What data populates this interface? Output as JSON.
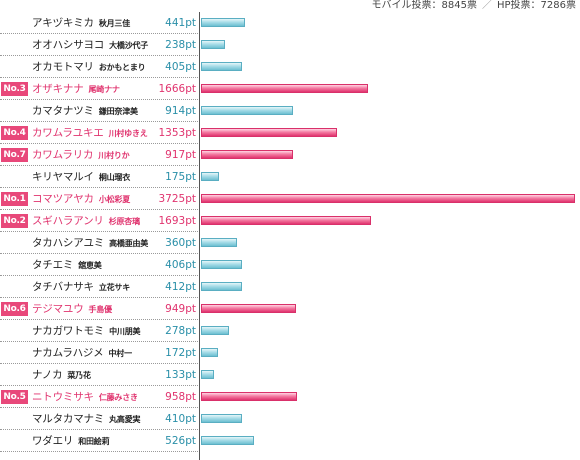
{
  "header": {
    "mobile": "モバイル投票：8845票",
    "separator": "／",
    "hp": "HP投票：7286票"
  },
  "colors": {
    "normal_bar": "#8ccfdd",
    "ranked_bar": "#e8487a",
    "normal_value": "#2a8fa8",
    "ranked_value": "#e0336e"
  },
  "chart_data": {
    "type": "bar",
    "orientation": "horizontal",
    "unit": "pt",
    "xlim": [
      0,
      3725
    ],
    "grid": false,
    "rows": [
      {
        "kana": "アキヅキミカ",
        "kanji": "秋月三佳",
        "value": 441,
        "label": "441pt",
        "rank": ""
      },
      {
        "kana": "オオハシサヨコ",
        "kanji": "大橋沙代子",
        "value": 238,
        "label": "238pt",
        "rank": ""
      },
      {
        "kana": "オカモトマリ",
        "kanji": "おかもとまり",
        "value": 405,
        "label": "405pt",
        "rank": ""
      },
      {
        "kana": "オザキナナ",
        "kanji": "尾崎ナナ",
        "value": 1666,
        "label": "1666pt",
        "rank": "No.3"
      },
      {
        "kana": "カマタナツミ",
        "kanji": "鎌田奈津美",
        "value": 914,
        "label": "914pt",
        "rank": ""
      },
      {
        "kana": "カワムラユキエ",
        "kanji": "川村ゆきえ",
        "value": 1353,
        "label": "1353pt",
        "rank": "No.4"
      },
      {
        "kana": "カワムラリカ",
        "kanji": "川村りか",
        "value": 917,
        "label": "917pt",
        "rank": "No.7"
      },
      {
        "kana": "キリヤマルイ",
        "kanji": "桐山瑠衣",
        "value": 175,
        "label": "175pt",
        "rank": ""
      },
      {
        "kana": "コマツアヤカ",
        "kanji": "小松彩夏",
        "value": 3725,
        "label": "3725pt",
        "rank": "No.1"
      },
      {
        "kana": "スギハラアンリ",
        "kanji": "杉原杏璃",
        "value": 1693,
        "label": "1693pt",
        "rank": "No.2"
      },
      {
        "kana": "タカハシアユミ",
        "kanji": "高橋亜由美",
        "value": 360,
        "label": "360pt",
        "rank": ""
      },
      {
        "kana": "タチエミ",
        "kanji": "舘恵美",
        "value": 406,
        "label": "406pt",
        "rank": ""
      },
      {
        "kana": "タチバナサキ",
        "kanji": "立花サキ",
        "value": 412,
        "label": "412pt",
        "rank": ""
      },
      {
        "kana": "テジマユウ",
        "kanji": "手島優",
        "value": 949,
        "label": "949pt",
        "rank": "No.6"
      },
      {
        "kana": "ナカガワトモミ",
        "kanji": "中川朋美",
        "value": 278,
        "label": "278pt",
        "rank": ""
      },
      {
        "kana": "ナカムラハジメ",
        "kanji": "中村一",
        "value": 172,
        "label": "172pt",
        "rank": ""
      },
      {
        "kana": "ナノカ",
        "kanji": "菜乃花",
        "value": 133,
        "label": "133pt",
        "rank": ""
      },
      {
        "kana": "ニトウミサキ",
        "kanji": "仁藤みさき",
        "value": 958,
        "label": "958pt",
        "rank": "No.5"
      },
      {
        "kana": "マルタカマナミ",
        "kanji": "丸高愛実",
        "value": 410,
        "label": "410pt",
        "rank": ""
      },
      {
        "kana": "ワダエリ",
        "kanji": "和田絵莉",
        "value": 526,
        "label": "526pt",
        "rank": ""
      }
    ]
  }
}
